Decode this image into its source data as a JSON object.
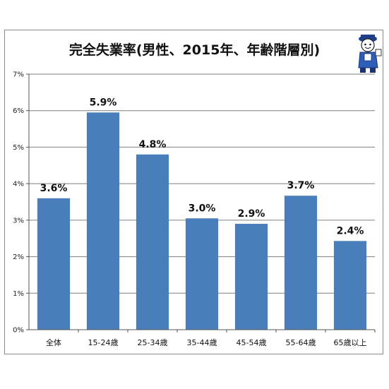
{
  "chart_data": {
    "type": "bar",
    "title": "完全失業率(男性、2015年、年齢階層別)",
    "categories": [
      "全体",
      "15-24歳",
      "25-34歳",
      "35-44歳",
      "45-54歳",
      "55-64歳",
      "65歳以上"
    ],
    "values": [
      3.6,
      5.95,
      4.8,
      3.05,
      2.9,
      3.67,
      2.43
    ],
    "data_labels": [
      "3.6%",
      "5.9%",
      "4.8%",
      "3.0%",
      "2.9%",
      "3.7%",
      "2.4%"
    ],
    "ylim": [
      0,
      7
    ],
    "yticks": [
      "0%",
      "1%",
      "2%",
      "3%",
      "4%",
      "5%",
      "6%",
      "7%"
    ],
    "xlabel": "",
    "ylabel": "",
    "grid": true,
    "bar_color": "#4a7ebb",
    "grid_color": "#7f7f7f"
  },
  "decoration": {
    "mascot_icon": "mascot-character-icon"
  }
}
